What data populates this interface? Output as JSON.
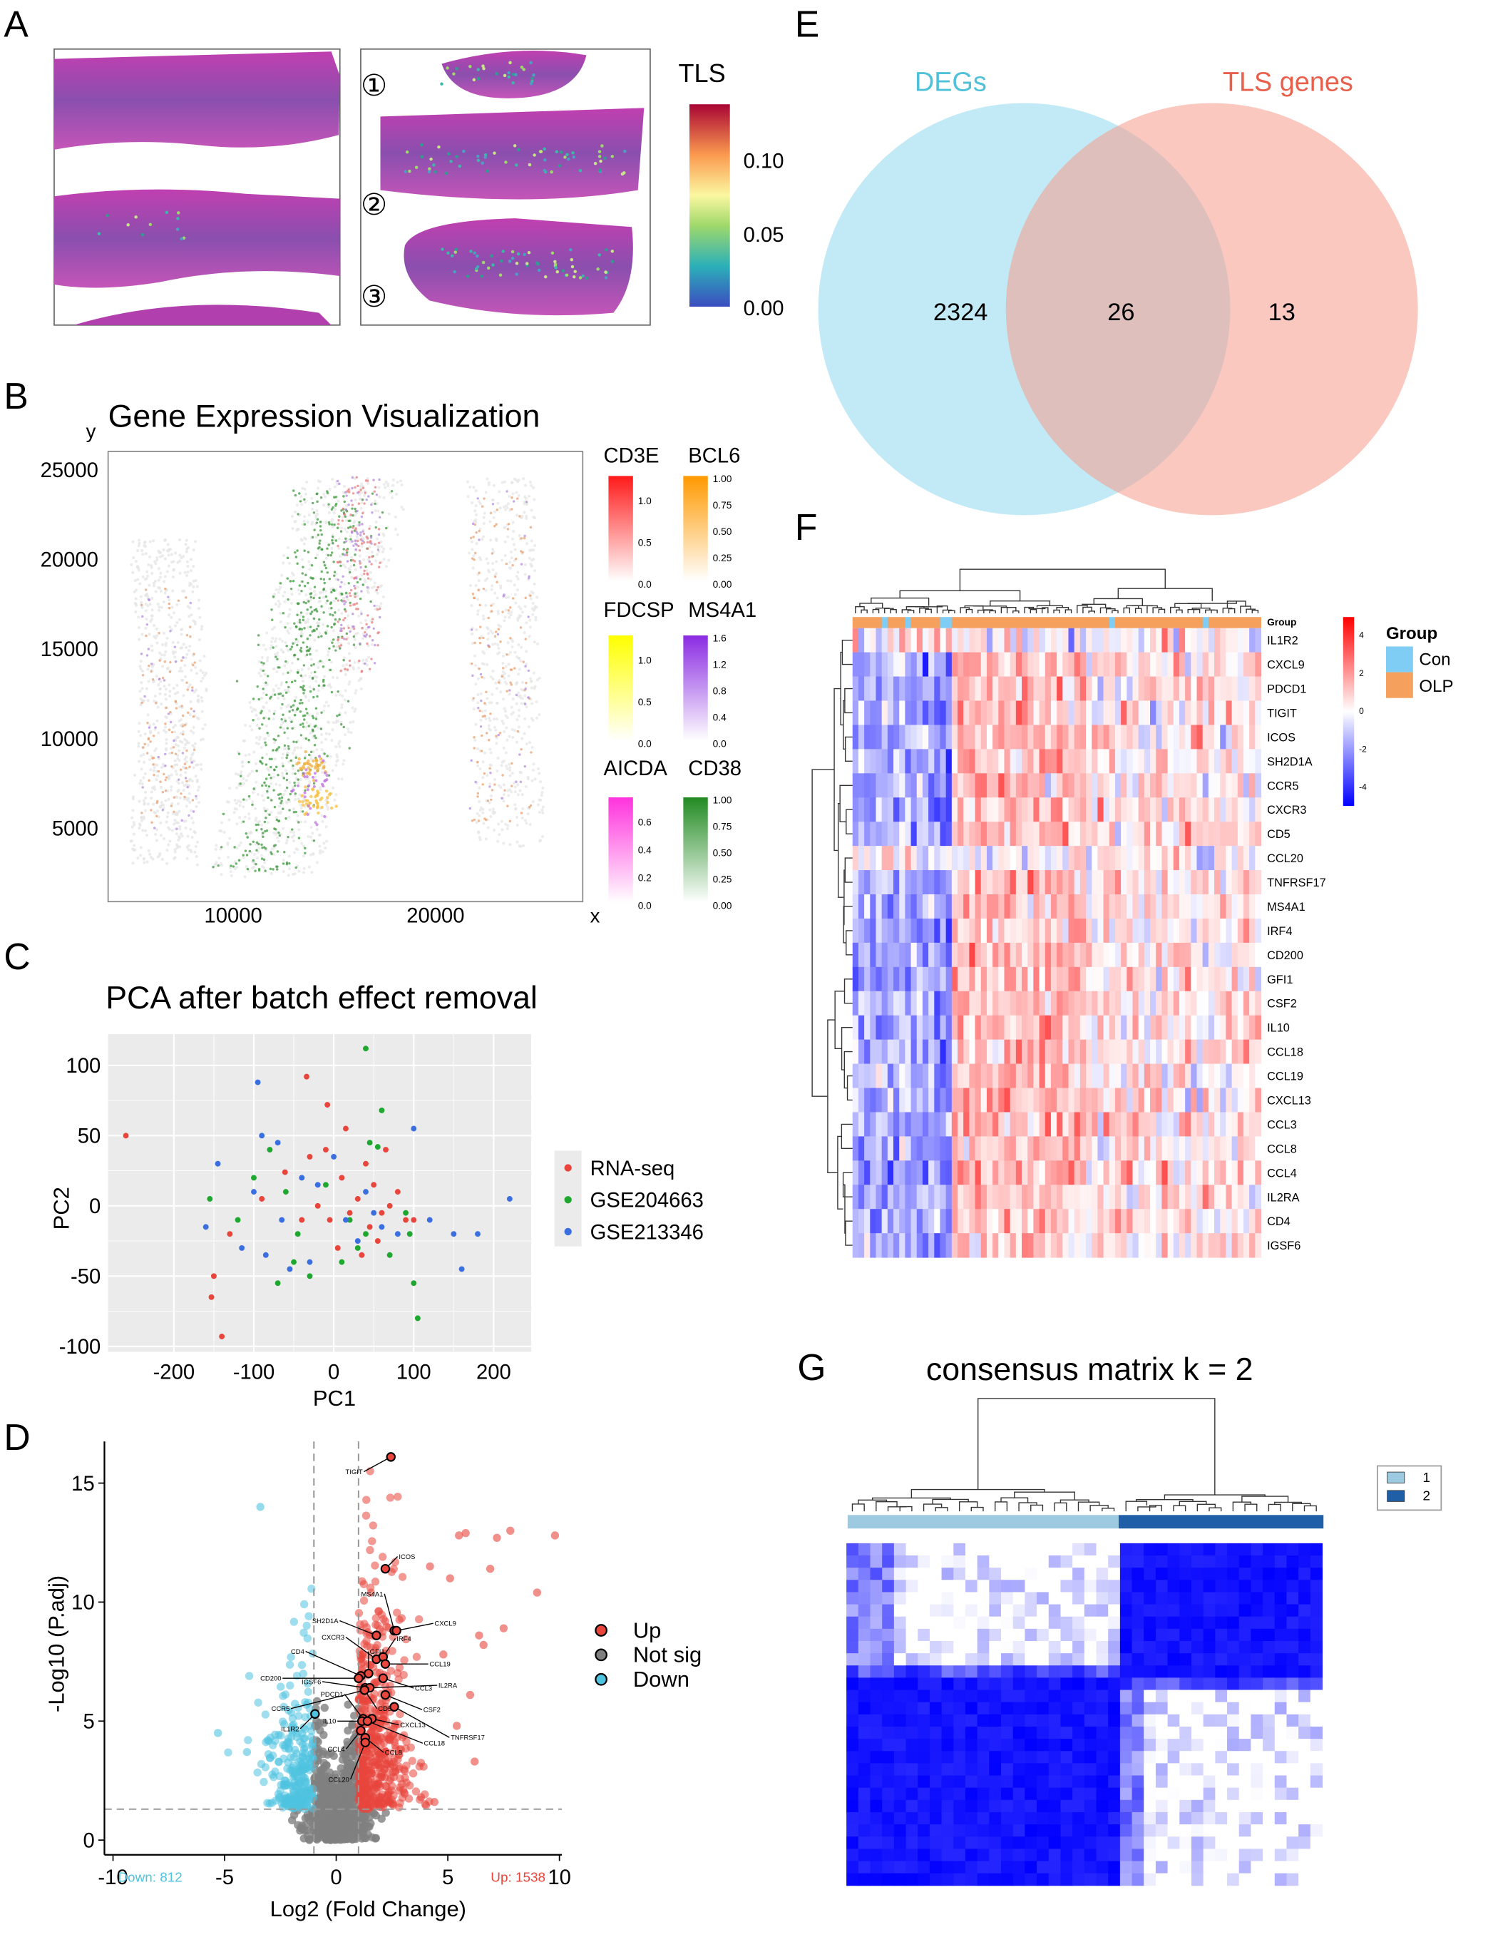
{
  "panels": {
    "a": "A",
    "b": "B",
    "c": "C",
    "d": "D",
    "e": "E",
    "f": "F",
    "g": "G"
  },
  "panel_a": {
    "colorbar_title": "TLS",
    "colorbar_ticks": [
      "0.10",
      "0.05",
      "0.00"
    ],
    "sample_marks": [
      "①",
      "②",
      "③"
    ]
  },
  "chart_data": [
    {
      "id": "B",
      "type": "scatter",
      "title": "Gene Expression Visualization",
      "xlabel": "x",
      "ylabel": "y",
      "xticks": [
        "10000",
        "20000"
      ],
      "yticks": [
        "25000",
        "20000",
        "15000",
        "10000",
        "5000"
      ],
      "xlim": [
        4000,
        28000
      ],
      "ylim": [
        1000,
        26000
      ],
      "legends": [
        {
          "gene": "CD3E",
          "color": "#ff1a1a",
          "ticks": [
            "1.0",
            "0.5",
            "0.0"
          ]
        },
        {
          "gene": "BCL6",
          "color": "#ff9900",
          "ticks": [
            "1.00",
            "0.75",
            "0.50",
            "0.25",
            "0.00"
          ]
        },
        {
          "gene": "FDCSP",
          "color": "#ffff00",
          "ticks": [
            "1.0",
            "0.5",
            "0.0"
          ]
        },
        {
          "gene": "MS4A1",
          "color": "#8a2be2",
          "ticks": [
            "1.6",
            "1.2",
            "0.8",
            "0.4",
            "0.0"
          ]
        },
        {
          "gene": "AICDA",
          "color": "#ff33dd",
          "ticks": [
            "0.6",
            "0.4",
            "0.2",
            "0.0"
          ]
        },
        {
          "gene": "CD38",
          "color": "#228b22",
          "ticks": [
            "1.00",
            "0.75",
            "0.50",
            "0.25",
            "0.00"
          ]
        }
      ]
    },
    {
      "id": "C",
      "type": "scatter",
      "title": "PCA after batch effect removal",
      "xlabel": "PC1",
      "ylabel": "PC2",
      "xticks": [
        "-200",
        "-100",
        "0",
        "100",
        "200"
      ],
      "yticks": [
        "100",
        "50",
        "0",
        "-50",
        "-100"
      ],
      "xlim": [
        -280,
        225
      ],
      "ylim": [
        -105,
        122
      ],
      "grid": true,
      "legend": "right",
      "series": [
        {
          "name": "RNA-seq",
          "color": "#e8453c",
          "points": [
            [
              -260,
              50
            ],
            [
              -150,
              -50
            ],
            [
              -153,
              -65
            ],
            [
              -140,
              -93
            ],
            [
              -34,
              92
            ],
            [
              -8,
              72
            ],
            [
              -61,
              24
            ],
            [
              -30,
              35
            ],
            [
              -10,
              40
            ],
            [
              10,
              20
            ],
            [
              30,
              5
            ],
            [
              50,
              15
            ],
            [
              60,
              -5
            ],
            [
              70,
              0
            ],
            [
              80,
              10
            ],
            [
              90,
              -10
            ],
            [
              45,
              -15
            ],
            [
              20,
              -5
            ],
            [
              -20,
              0
            ],
            [
              -40,
              -10
            ],
            [
              5,
              -30
            ],
            [
              35,
              -35
            ],
            [
              55,
              -25
            ],
            [
              100,
              -10
            ],
            [
              -90,
              5
            ],
            [
              -130,
              -20
            ],
            [
              15,
              55
            ],
            [
              65,
              40
            ],
            [
              -5,
              -10
            ],
            [
              40,
              30
            ]
          ]
        },
        {
          "name": "GSE204663",
          "color": "#1fa830",
          "points": [
            [
              40,
              112
            ],
            [
              60,
              68
            ],
            [
              -155,
              5
            ],
            [
              -100,
              20
            ],
            [
              -80,
              40
            ],
            [
              -30,
              -50
            ],
            [
              -50,
              -40
            ],
            [
              20,
              -10
            ],
            [
              -10,
              15
            ],
            [
              40,
              -20
            ],
            [
              45,
              45
            ],
            [
              55,
              42
            ],
            [
              95,
              -20
            ],
            [
              100,
              -55
            ],
            [
              105,
              -80
            ],
            [
              -45,
              -20
            ],
            [
              -70,
              -55
            ],
            [
              30,
              -30
            ],
            [
              70,
              -35
            ],
            [
              -60,
              10
            ],
            [
              -120,
              -10
            ],
            [
              10,
              -40
            ],
            [
              90,
              -5
            ]
          ]
        },
        {
          "name": "GSE213346",
          "color": "#3b6fe0",
          "points": [
            [
              -95,
              88
            ],
            [
              -90,
              50
            ],
            [
              -145,
              30
            ],
            [
              -160,
              -15
            ],
            [
              -70,
              45
            ],
            [
              -55,
              -45
            ],
            [
              -85,
              -35
            ],
            [
              -100,
              10
            ],
            [
              -40,
              20
            ],
            [
              -20,
              15
            ],
            [
              0,
              35
            ],
            [
              15,
              -10
            ],
            [
              30,
              -25
            ],
            [
              50,
              -5
            ],
            [
              60,
              -15
            ],
            [
              80,
              -20
            ],
            [
              -30,
              -40
            ],
            [
              -65,
              -10
            ],
            [
              100,
              55
            ],
            [
              120,
              -10
            ],
            [
              150,
              -20
            ],
            [
              180,
              -20
            ],
            [
              220,
              5
            ],
            [
              160,
              -45
            ],
            [
              -115,
              -30
            ],
            [
              40,
              10
            ]
          ]
        }
      ]
    },
    {
      "id": "D",
      "type": "scatter",
      "xlabel": "Log2 (Fold Change)",
      "ylabel": "-Log10 (P.adj)",
      "xticks": [
        "-10",
        "-5",
        "0",
        "5",
        "10"
      ],
      "yticks": [
        "0",
        "5",
        "10",
        "15"
      ],
      "xlim": [
        -10.5,
        10.5
      ],
      "ylim": [
        -0.5,
        16.8
      ],
      "thresholds": {
        "logfc": 1,
        "padj_log": 1.3
      },
      "legend_items": [
        {
          "label": "Up",
          "color": "#e8453c"
        },
        {
          "label": "Not sig",
          "color": "#7f7f7f"
        },
        {
          "label": "Down",
          "color": "#4ec3e0"
        }
      ],
      "down_label": "Down: 812",
      "up_label": "Up: 1538",
      "labeled_genes": [
        {
          "gene": "TIGIT",
          "x": 2.45,
          "y": 16.1
        },
        {
          "gene": "ICOS",
          "x": 2.2,
          "y": 11.4
        },
        {
          "gene": "MS4A1",
          "x": 2.6,
          "y": 8.8
        },
        {
          "gene": "CXCL9",
          "x": 2.7,
          "y": 8.8
        },
        {
          "gene": "SH2D1A",
          "x": 1.8,
          "y": 8.6
        },
        {
          "gene": "CXCR3",
          "x": 1.8,
          "y": 7.6
        },
        {
          "gene": "IRF4",
          "x": 2.1,
          "y": 7.7
        },
        {
          "gene": "CCL19",
          "x": 2.2,
          "y": 7.4
        },
        {
          "gene": "CD4",
          "x": 1.1,
          "y": 6.9
        },
        {
          "gene": "GFI1",
          "x": 1.45,
          "y": 7.0
        },
        {
          "gene": "CD200",
          "x": 1.0,
          "y": 6.8
        },
        {
          "gene": "IGSF6",
          "x": 1.3,
          "y": 6.4
        },
        {
          "gene": "IL2RA",
          "x": 1.5,
          "y": 6.4
        },
        {
          "gene": "CCL3",
          "x": 2.1,
          "y": 6.8
        },
        {
          "gene": "CCR5",
          "x": 1.27,
          "y": 6.3
        },
        {
          "gene": "CD5",
          "x": 1.27,
          "y": 6.3
        },
        {
          "gene": "PDCD1",
          "x": 1.2,
          "y": 5.1
        },
        {
          "gene": "CSF2",
          "x": 2.2,
          "y": 6.1
        },
        {
          "gene": "TNFRSF17",
          "x": 2.6,
          "y": 5.6
        },
        {
          "gene": "IL10",
          "x": 1.15,
          "y": 5.0
        },
        {
          "gene": "CXCL13",
          "x": 1.6,
          "y": 5.1
        },
        {
          "gene": "CCL18",
          "x": 1.4,
          "y": 5.0
        },
        {
          "gene": "CCL4",
          "x": 1.1,
          "y": 4.6
        },
        {
          "gene": "CCL8",
          "x": 1.3,
          "y": 4.3
        },
        {
          "gene": "CCL20",
          "x": 1.3,
          "y": 4.1
        },
        {
          "gene": "IL1R2",
          "x": -0.95,
          "y": 5.3
        }
      ]
    },
    {
      "id": "E",
      "type": "venn",
      "sets": [
        {
          "name": "DEGs",
          "color": "#4fc1d9"
        },
        {
          "name": "TLS genes",
          "color": "#e8604c"
        }
      ],
      "values": {
        "only_a": "2324",
        "both": "26",
        "only_b": "13"
      }
    },
    {
      "id": "F",
      "type": "heatmap",
      "rows": [
        "IL1R2",
        "CXCL9",
        "PDCD1",
        "TIGIT",
        "ICOS",
        "SH2D1A",
        "CCR5",
        "CXCR3",
        "CD5",
        "CCL20",
        "TNFRSF17",
        "MS4A1",
        "IRF4",
        "CD200",
        "GFI1",
        "CSF2",
        "IL10",
        "CCL18",
        "CCL19",
        "CXCL13",
        "CCL3",
        "CCL8",
        "CCL4",
        "IL2RA",
        "CD4",
        "IGSF6"
      ],
      "annotation_label": "Group",
      "colorbar_ticks": [
        "4",
        "2",
        "0",
        "-2",
        "-4"
      ],
      "legend_title": "Group",
      "groups": [
        {
          "name": "Con",
          "color": "#7fcdf5"
        },
        {
          "name": "OLP",
          "color": "#f5a05c"
        }
      ]
    },
    {
      "id": "G",
      "type": "heatmap",
      "title": "consensus matrix k = 2",
      "clusters": [
        {
          "name": "1",
          "color": "#9ecae1"
        },
        {
          "name": "2",
          "color": "#1f5fa8"
        }
      ]
    }
  ]
}
